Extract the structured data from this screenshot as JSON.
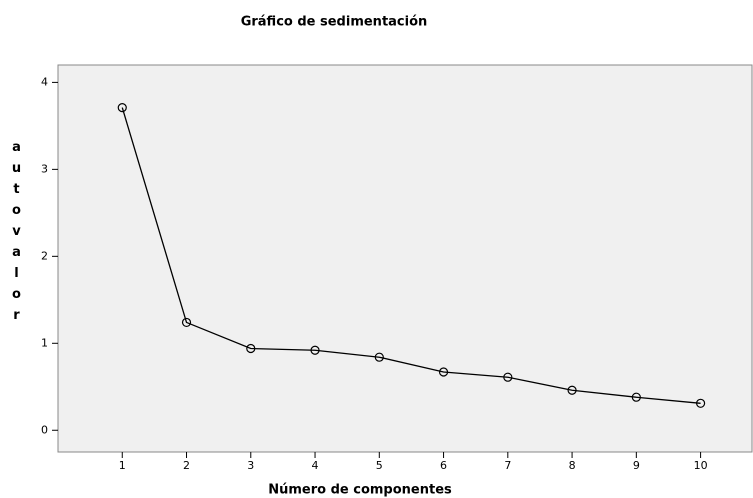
{
  "chart_data": {
    "type": "line",
    "title": "Gráfico de sedimentación",
    "x_label": "Número de componentes",
    "y_label": "autovalor",
    "x": [
      1,
      2,
      3,
      4,
      5,
      6,
      7,
      8,
      9,
      10
    ],
    "values": [
      3.71,
      1.24,
      0.94,
      0.92,
      0.84,
      0.67,
      0.61,
      0.46,
      0.38,
      0.31
    ],
    "color": "#000000",
    "xlim": [
      0,
      10.8
    ],
    "xticks": [
      1,
      2,
      3,
      4,
      5,
      6,
      7,
      8,
      9,
      10
    ],
    "ylim": [
      -0.25,
      4.2
    ],
    "yticks": [
      0,
      1,
      2,
      3,
      4
    ],
    "grid": false
  }
}
